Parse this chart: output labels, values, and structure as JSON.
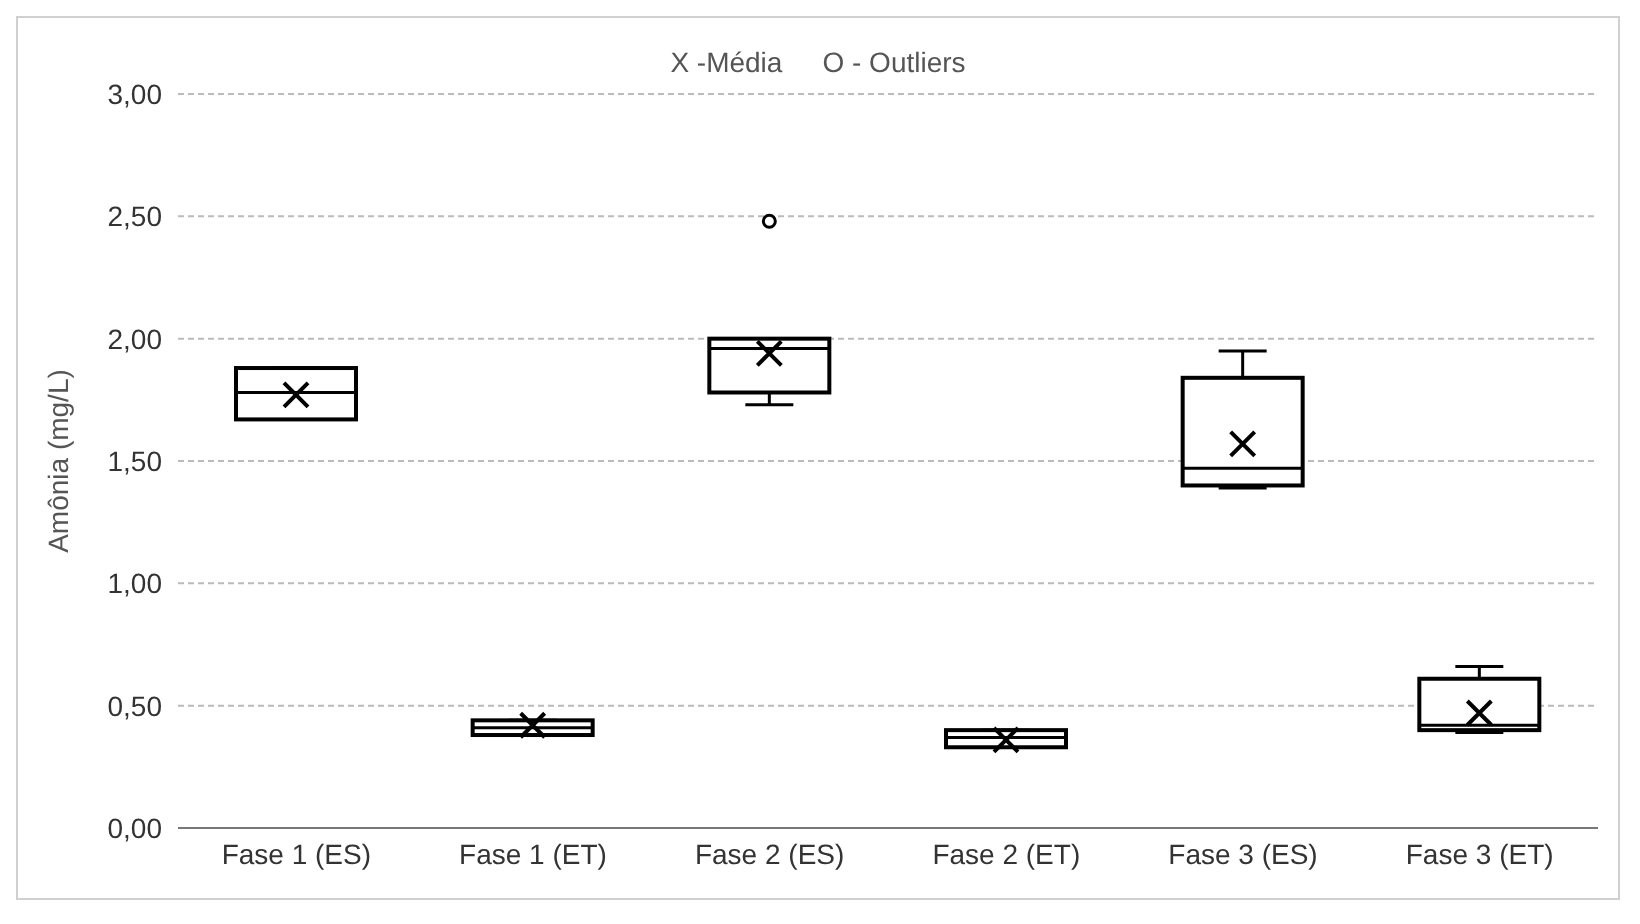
{
  "chart_data": {
    "type": "box",
    "ylabel": "Amônia (mg/L)",
    "annotations": [
      "X -Média",
      "O - Outliers"
    ],
    "categories": [
      "Fase 1 (ES)",
      "Fase 1 (ET)",
      "Fase 2 (ES)",
      "Fase 2 (ET)",
      "Fase 3 (ES)",
      "Fase 3 (ET)"
    ],
    "boxes": [
      {
        "low": 1.67,
        "q1": 1.67,
        "median": 1.78,
        "q3": 1.88,
        "high": 1.88,
        "mean": 1.77
      },
      {
        "low": 0.38,
        "q1": 0.38,
        "median": 0.41,
        "q3": 0.44,
        "high": 0.44,
        "mean": 0.42
      },
      {
        "low": 1.73,
        "q1": 1.78,
        "median": 1.96,
        "q3": 2.0,
        "high": 2.0,
        "mean": 1.94,
        "outliers": [
          2.48
        ]
      },
      {
        "low": 0.33,
        "q1": 0.33,
        "median": 0.37,
        "q3": 0.4,
        "high": 0.4,
        "mean": 0.36
      },
      {
        "low": 1.39,
        "q1": 1.4,
        "median": 1.47,
        "q3": 1.84,
        "high": 1.95,
        "mean": 1.57
      },
      {
        "low": 0.39,
        "q1": 0.4,
        "median": 0.42,
        "q3": 0.61,
        "high": 0.66,
        "mean": 0.47
      }
    ],
    "color": "#000000",
    "ylim": [
      0,
      3
    ],
    "yticks": [
      {
        "value": 0,
        "label": "0,00"
      },
      {
        "value": 0.5,
        "label": "0,50"
      },
      {
        "value": 1,
        "label": "1,00"
      },
      {
        "value": 1.5,
        "label": "1,50"
      },
      {
        "value": 2,
        "label": "2,00"
      },
      {
        "value": 2.5,
        "label": "2,50"
      },
      {
        "value": 3,
        "label": "3,00"
      }
    ],
    "grid": "y"
  }
}
